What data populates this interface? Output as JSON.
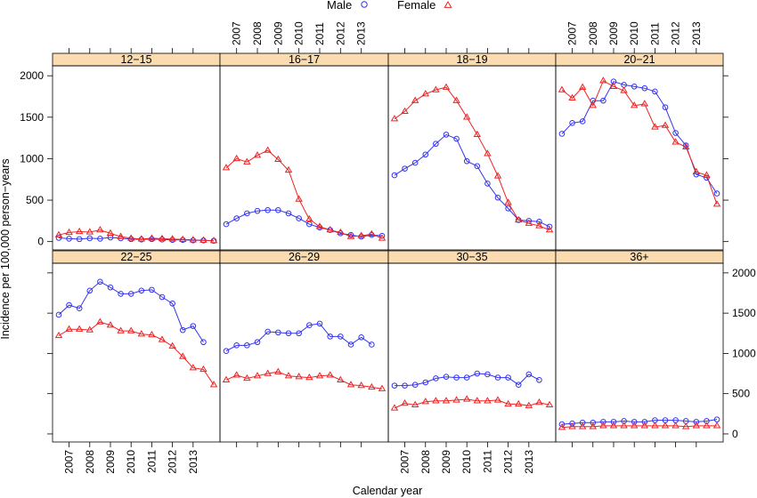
{
  "chart_data": {
    "type": "line",
    "xlabel": "Calendar year",
    "ylabel": "Incidence per 100,000 person−years",
    "legend": {
      "placement": "top-center",
      "entries": [
        {
          "name": "Male",
          "color": "#3333ee",
          "marker": "circle"
        },
        {
          "name": "Female",
          "color": "#ee2222",
          "marker": "triangle"
        }
      ]
    },
    "x_ticks": [
      "2007",
      "2008",
      "2009",
      "2010",
      "2011",
      "2012",
      "2013"
    ],
    "x_ticks_values": [
      2007,
      2008,
      2009,
      2010,
      2011,
      2012,
      2013
    ],
    "xlim": [
      2006.2,
      2014.3
    ],
    "ylim": [
      -100,
      2120
    ],
    "y_ticks": [
      0,
      500,
      1000,
      1500,
      2000
    ],
    "y_tick_labels": [
      "0",
      "500",
      "1000",
      "1500",
      "2000"
    ],
    "strip_color": "#fbdcb0",
    "panels": [
      {
        "label": "12−15",
        "x": [
          2006.5,
          2007,
          2007.5,
          2008,
          2008.5,
          2009,
          2009.5,
          2010,
          2010.5,
          2011,
          2011.5,
          2012,
          2012.5,
          2013,
          2013.5,
          2014
        ],
        "male": [
          45,
          35,
          30,
          40,
          35,
          50,
          40,
          30,
          25,
          30,
          25,
          20,
          20,
          15,
          15,
          10
        ],
        "female": [
          80,
          110,
          120,
          115,
          140,
          100,
          60,
          40,
          30,
          40,
          35,
          30,
          25,
          20,
          15,
          10
        ]
      },
      {
        "label": "16−17",
        "x": [
          2006.5,
          2007,
          2007.5,
          2008,
          2008.5,
          2009,
          2009.5,
          2010,
          2010.5,
          2011,
          2011.5,
          2012,
          2012.5,
          2013,
          2013.5,
          2014
        ],
        "male": [
          210,
          280,
          340,
          370,
          380,
          380,
          340,
          280,
          210,
          170,
          140,
          100,
          80,
          60,
          80,
          70
        ],
        "female": [
          890,
          1000,
          960,
          1040,
          1100,
          990,
          860,
          510,
          270,
          180,
          140,
          110,
          60,
          70,
          90,
          40
        ]
      },
      {
        "label": "18−19",
        "x": [
          2006.5,
          2007,
          2007.5,
          2008,
          2008.5,
          2009,
          2009.5,
          2010,
          2010.5,
          2011,
          2011.5,
          2012,
          2012.5,
          2013,
          2013.5,
          2014
        ],
        "male": [
          800,
          880,
          950,
          1050,
          1180,
          1290,
          1240,
          970,
          910,
          700,
          530,
          400,
          260,
          250,
          240,
          180
        ],
        "female": [
          1480,
          1570,
          1700,
          1780,
          1830,
          1860,
          1700,
          1500,
          1290,
          1060,
          790,
          470,
          260,
          220,
          190,
          140
        ]
      },
      {
        "label": "20−21",
        "x": [
          2006.5,
          2007,
          2007.5,
          2008,
          2008.5,
          2009,
          2009.5,
          2010,
          2010.5,
          2011,
          2011.5,
          2012,
          2012.5,
          2013,
          2013.5,
          2014
        ],
        "male": [
          1300,
          1430,
          1450,
          1700,
          1700,
          1930,
          1890,
          1870,
          1850,
          1810,
          1620,
          1310,
          1160,
          810,
          770,
          580
        ],
        "female": [
          1830,
          1730,
          1860,
          1640,
          1940,
          1870,
          1820,
          1640,
          1660,
          1380,
          1400,
          1200,
          1140,
          840,
          800,
          450
        ]
      },
      {
        "label": "22−25",
        "x": [
          2006.5,
          2007,
          2007.5,
          2008,
          2008.5,
          2009,
          2009.5,
          2010,
          2010.5,
          2011,
          2011.5,
          2012,
          2012.5,
          2013,
          2013.5,
          2014
        ],
        "male": [
          1480,
          1600,
          1560,
          1780,
          1890,
          1820,
          1740,
          1740,
          1780,
          1790,
          1700,
          1620,
          1290,
          1340,
          1140,
          null
        ],
        "female": [
          1220,
          1300,
          1300,
          1290,
          1390,
          1350,
          1280,
          1280,
          1240,
          1230,
          1170,
          1090,
          960,
          820,
          800,
          610
        ]
      },
      {
        "label": "26−29",
        "x": [
          2006.5,
          2007,
          2007.5,
          2008,
          2008.5,
          2009,
          2009.5,
          2010,
          2010.5,
          2011,
          2011.5,
          2012,
          2012.5,
          2013,
          2013.5,
          2014
        ],
        "male": [
          1030,
          1100,
          1100,
          1140,
          1270,
          1260,
          1250,
          1250,
          1350,
          1370,
          1210,
          1210,
          1110,
          1200,
          1110,
          null
        ],
        "female": [
          670,
          730,
          690,
          720,
          750,
          770,
          720,
          710,
          700,
          720,
          730,
          670,
          610,
          600,
          580,
          560
        ]
      },
      {
        "label": "30−35",
        "x": [
          2006.5,
          2007,
          2007.5,
          2008,
          2008.5,
          2009,
          2009.5,
          2010,
          2010.5,
          2011,
          2011.5,
          2012,
          2012.5,
          2013,
          2013.5,
          2014
        ],
        "male": [
          600,
          600,
          610,
          640,
          690,
          710,
          700,
          700,
          750,
          740,
          700,
          700,
          610,
          740,
          670,
          null
        ],
        "female": [
          320,
          380,
          360,
          400,
          410,
          410,
          420,
          430,
          410,
          410,
          420,
          370,
          370,
          350,
          390,
          360
        ]
      },
      {
        "label": "36+",
        "x": [
          2006.5,
          2007,
          2007.5,
          2008,
          2008.5,
          2009,
          2009.5,
          2010,
          2010.5,
          2011,
          2011.5,
          2012,
          2012.5,
          2013,
          2013.5,
          2014
        ],
        "male": [
          120,
          130,
          140,
          140,
          150,
          150,
          160,
          150,
          150,
          170,
          170,
          170,
          160,
          150,
          160,
          180
        ],
        "female": [
          80,
          90,
          90,
          90,
          100,
          100,
          100,
          100,
          100,
          100,
          100,
          100,
          90,
          100,
          100,
          100
        ]
      }
    ]
  }
}
